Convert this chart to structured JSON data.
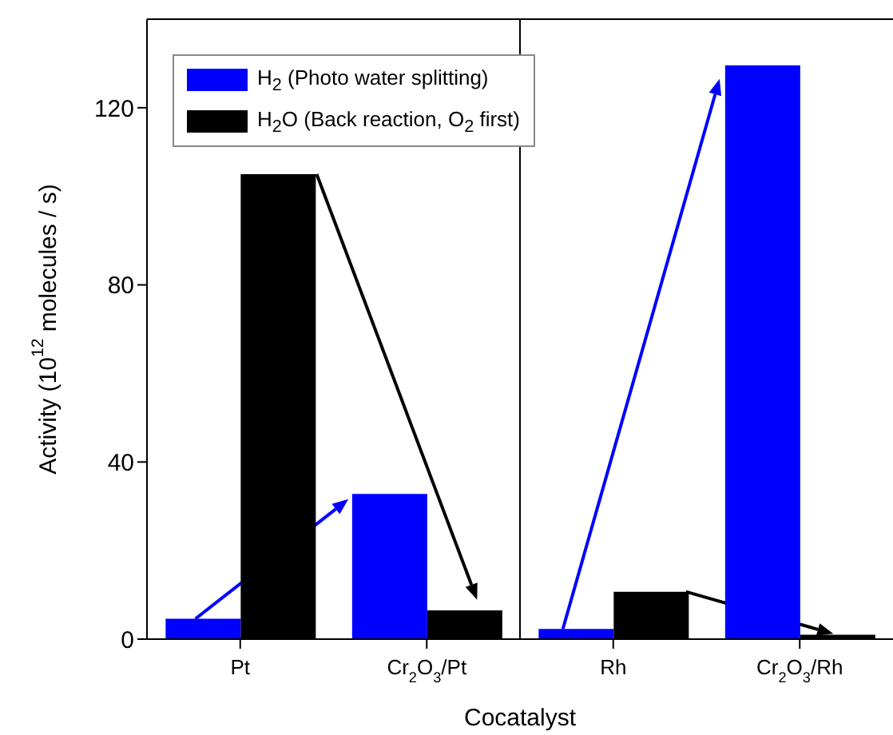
{
  "chart_data": {
    "type": "bar",
    "xlabel": "Cocatalyst",
    "ylabel": "Activity (10$^{12}$ molecules / s)",
    "categories": [
      "Pt",
      "Cr$_{2}$O$_{3}$/Pt",
      "Rh",
      "Cr$_{2}$O$_{3}$/Rh"
    ],
    "series": [
      {
        "name": "H$_{2}$ (Photo water splitting)",
        "color": "#0000ff",
        "values": [
          4.6,
          32.8,
          2.3,
          129.6
        ]
      },
      {
        "name": "H$_{2}$O (Back reaction, O$_{2}$ first)",
        "color": "#000000",
        "values": [
          105,
          6.5,
          10.7,
          1.0
        ]
      }
    ],
    "ylim": [
      0,
      140
    ],
    "yticks": [
      0,
      40,
      80,
      120
    ],
    "grid": false,
    "legend": "top left"
  }
}
